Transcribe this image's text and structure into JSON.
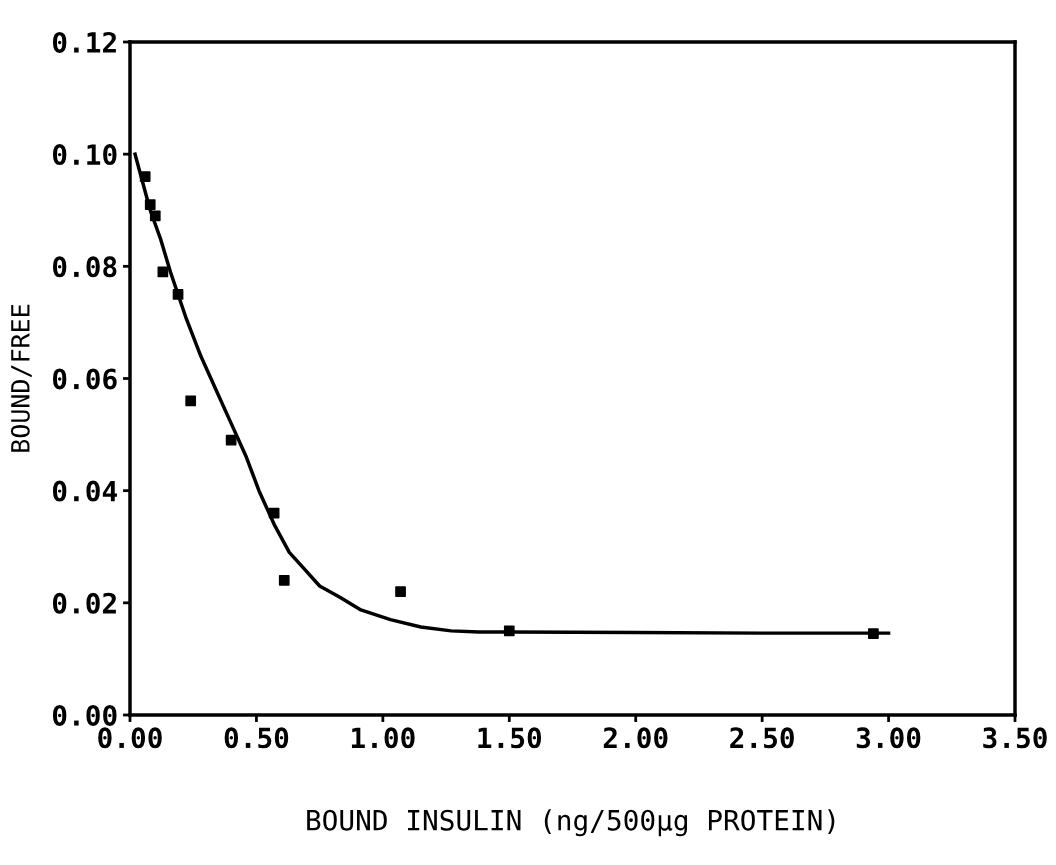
{
  "chart_data": {
    "type": "scatter",
    "xlabel": "BOUND INSULIN (ng/500µg PROTEIN)",
    "ylabel": "BOUND/FREE",
    "xlim": [
      0,
      3.5
    ],
    "ylim": [
      0,
      0.12
    ],
    "xticks": [
      {
        "value": 0,
        "label": "0.00"
      },
      {
        "value": 0.5,
        "label": "0.50"
      },
      {
        "value": 1.0,
        "label": "1.00"
      },
      {
        "value": 1.5,
        "label": "1.50"
      },
      {
        "value": 2.0,
        "label": "2.00"
      },
      {
        "value": 2.5,
        "label": "2.50"
      },
      {
        "value": 3.0,
        "label": "3.00"
      },
      {
        "value": 3.5,
        "label": "3.50"
      }
    ],
    "yticks": [
      {
        "value": 0,
        "label": "0.00"
      },
      {
        "value": 0.02,
        "label": "0.02"
      },
      {
        "value": 0.04,
        "label": "0.04"
      },
      {
        "value": 0.06,
        "label": "0.06"
      },
      {
        "value": 0.08,
        "label": "0.08"
      },
      {
        "value": 0.1,
        "label": "0.10"
      },
      {
        "value": 0.12,
        "label": "0.12"
      }
    ],
    "grid": false,
    "legend": false,
    "series": [
      {
        "marker": "square",
        "color": "#000000",
        "x": [
          0.06,
          0.08,
          0.1,
          0.13,
          0.19,
          0.24,
          0.4,
          0.57,
          0.61,
          1.07,
          1.5,
          2.94
        ],
        "values": [
          0.096,
          0.091,
          0.089,
          0.079,
          0.075,
          0.056,
          0.049,
          0.036,
          0.024,
          0.022,
          0.015,
          0.0145
        ]
      },
      {
        "type": "line",
        "marker": "none",
        "color": "#000000",
        "line_style": "solid",
        "x": [
          0.02,
          0.05,
          0.08,
          0.12,
          0.16,
          0.22,
          0.28,
          0.34,
          0.4,
          0.46,
          0.51,
          0.57,
          0.63,
          0.69,
          0.75,
          0.83,
          0.91,
          1.03,
          1.15,
          1.27,
          1.38,
          1.5,
          2.0,
          2.5,
          3.0
        ],
        "values": [
          0.1,
          0.095,
          0.09,
          0.085,
          0.079,
          0.071,
          0.064,
          0.058,
          0.052,
          0.046,
          0.04,
          0.034,
          0.029,
          0.026,
          0.023,
          0.021,
          0.0188,
          0.017,
          0.0157,
          0.015,
          0.0148,
          0.0148,
          0.0147,
          0.0146,
          0.0146
        ]
      }
    ]
  }
}
